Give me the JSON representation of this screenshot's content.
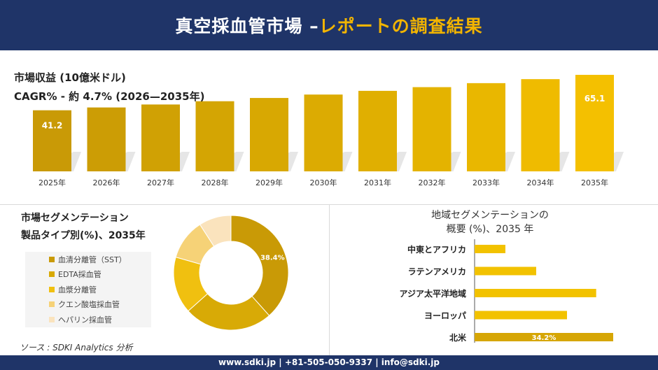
{
  "header": {
    "title_main": "真空採血管市場 –",
    "title_accent": "レポートの調査結果"
  },
  "top": {
    "revenue_label": "市場収益 (10億米ドル)",
    "cagr_label": "CAGR% - 約 4.7% (2026—2035年)"
  },
  "segment": {
    "title_line1": "市場セグメンテーション",
    "title_line2": "製品タイプ別(%)、2035年"
  },
  "region": {
    "title_line1": "地域セグメンテーションの",
    "title_line2": "概要 (%)、2035 年"
  },
  "source": "ソース : SDKI Analytics 分析",
  "footer": "www.sdki.jp | +81-505-050-9337 | info@sdki.jp",
  "chart_data": [
    {
      "type": "bar",
      "categories": [
        "2025年",
        "2026年",
        "2027年",
        "2028年",
        "2029年",
        "2030年",
        "2031年",
        "2032年",
        "2033年",
        "2034年",
        "2035年"
      ],
      "values": [
        41.2,
        43.1,
        45.1,
        47.3,
        49.5,
        51.8,
        54.3,
        56.8,
        59.5,
        62.2,
        65.1
      ],
      "data_labels": [
        "41.2",
        "",
        "",
        "",
        "",
        "",
        "",
        "",
        "",
        "",
        "65.1"
      ],
      "colors": [
        "#c99a06",
        "#cc9d05",
        "#d0a104",
        "#d4a503",
        "#d8a802",
        "#dcab02",
        "#e0af01",
        "#e4b300",
        "#e9b700",
        "#efbb00",
        "#f4c000"
      ]
    },
    {
      "type": "pie",
      "labels": [
        "血清分離管（SST）",
        "EDTA採血管",
        "血漿分離管",
        "クエン酸塩採血管",
        "ヘパリン採血管"
      ],
      "values": [
        38.4,
        25.0,
        16.0,
        11.5,
        9.1
      ],
      "data_labels": [
        "38.4%",
        "",
        "",
        "",
        ""
      ],
      "colors": [
        "#c99a06",
        "#d8aa06",
        "#f0c010",
        "#f6d277",
        "#fae3bd"
      ]
    },
    {
      "type": "bar",
      "orientation": "horizontal",
      "categories": [
        "中東とアフリカ",
        "ラテンアメリカ",
        "アジア太平洋地域",
        "ヨーロッパ",
        "北米"
      ],
      "values": [
        7.6,
        15.2,
        30.0,
        22.8,
        34.2
      ],
      "data_labels": [
        "",
        "",
        "",
        "",
        "34.2%"
      ],
      "colors": [
        "#f2c200",
        "#f2c200",
        "#f2c200",
        "#f2c200",
        "#d6a605"
      ]
    }
  ]
}
